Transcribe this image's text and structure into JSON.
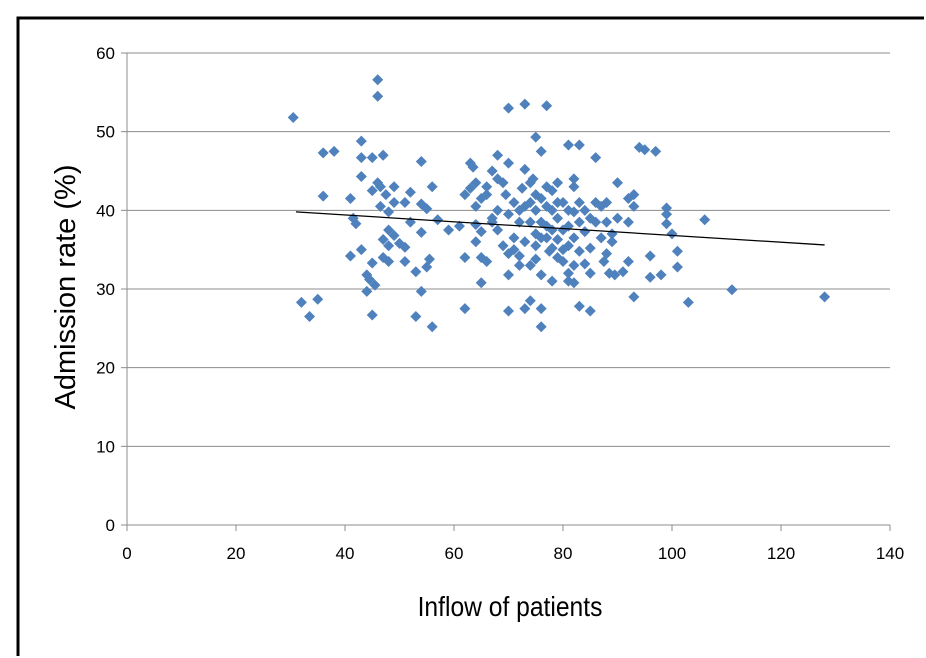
{
  "chart_data": {
    "type": "scatter",
    "title": "",
    "xlabel": "Inflow of patients",
    "ylabel": "Admission rate (%)",
    "xlim": [
      0,
      140
    ],
    "ylim": [
      0,
      60
    ],
    "x_ticks": [
      "0",
      "20",
      "40",
      "60",
      "80",
      "100",
      "120",
      "140"
    ],
    "y_ticks": [
      "0",
      "10",
      "20",
      "30",
      "40",
      "50",
      "60"
    ],
    "grid": "horizontal",
    "legend": "none",
    "marker_color": "#4F81BD",
    "trendline": {
      "type": "linear",
      "color": "#000000",
      "x": [
        31,
        128
      ],
      "y": [
        39.8,
        35.6
      ]
    },
    "series": [
      {
        "points": [
          [
            30.5,
            51.8
          ],
          [
            32,
            28.3
          ],
          [
            33.5,
            26.5
          ],
          [
            35,
            28.7
          ],
          [
            36,
            41.8
          ],
          [
            36,
            47.3
          ],
          [
            38,
            47.5
          ],
          [
            41,
            34.2
          ],
          [
            41,
            41.5
          ],
          [
            41.5,
            39
          ],
          [
            42,
            38.3
          ],
          [
            43,
            48.8
          ],
          [
            43,
            46.7
          ],
          [
            43,
            44.3
          ],
          [
            43,
            35
          ],
          [
            44,
            31.8
          ],
          [
            44,
            29.7
          ],
          [
            44.5,
            31.2
          ],
          [
            45,
            42.5
          ],
          [
            45,
            26.7
          ],
          [
            45,
            33.3
          ],
          [
            45,
            46.7
          ],
          [
            45.5,
            30.5
          ],
          [
            46,
            56.6
          ],
          [
            46,
            54.5
          ],
          [
            46,
            43.5
          ],
          [
            46.5,
            43
          ],
          [
            46.5,
            40.5
          ],
          [
            47,
            47
          ],
          [
            47,
            36.3
          ],
          [
            47,
            34
          ],
          [
            47.5,
            42
          ],
          [
            48,
            39.8
          ],
          [
            48,
            37.5
          ],
          [
            48,
            35.5
          ],
          [
            48,
            33.5
          ],
          [
            49,
            43
          ],
          [
            49,
            41
          ],
          [
            49,
            36.8
          ],
          [
            50,
            35.8
          ],
          [
            51,
            41
          ],
          [
            51,
            35.3
          ],
          [
            51,
            33.5
          ],
          [
            52,
            42.3
          ],
          [
            52,
            38.5
          ],
          [
            53,
            26.5
          ],
          [
            53,
            32.2
          ],
          [
            54,
            46.2
          ],
          [
            54,
            40.8
          ],
          [
            54,
            37.2
          ],
          [
            54,
            29.7
          ],
          [
            55,
            40.2
          ],
          [
            55,
            32.8
          ],
          [
            55.5,
            33.8
          ],
          [
            56,
            25.2
          ],
          [
            56,
            43
          ],
          [
            57,
            38.8
          ],
          [
            59,
            37.5
          ],
          [
            61,
            38
          ],
          [
            62,
            42
          ],
          [
            62,
            34
          ],
          [
            62,
            27.5
          ],
          [
            63,
            46
          ],
          [
            63,
            42.8
          ],
          [
            63.5,
            45.5
          ],
          [
            64,
            40.5
          ],
          [
            64,
            38.2
          ],
          [
            64,
            36
          ],
          [
            64,
            43.5
          ],
          [
            65,
            41.5
          ],
          [
            65,
            37.3
          ],
          [
            65,
            34
          ],
          [
            65,
            30.8
          ],
          [
            66,
            43
          ],
          [
            66,
            42
          ],
          [
            66,
            33.5
          ],
          [
            67,
            45
          ],
          [
            67,
            39
          ],
          [
            67,
            38.5
          ],
          [
            68,
            47
          ],
          [
            68,
            44
          ],
          [
            68,
            40
          ],
          [
            68,
            37.5
          ],
          [
            69,
            43.5
          ],
          [
            69,
            35.5
          ],
          [
            69.5,
            42
          ],
          [
            70,
            53
          ],
          [
            70,
            46
          ],
          [
            70,
            39.5
          ],
          [
            70,
            34.5
          ],
          [
            70,
            31.8
          ],
          [
            70,
            27.2
          ],
          [
            71,
            41
          ],
          [
            71,
            36.5
          ],
          [
            71,
            35
          ],
          [
            72,
            40
          ],
          [
            72,
            38.5
          ],
          [
            72,
            34.2
          ],
          [
            72,
            33
          ],
          [
            72.5,
            42.8
          ],
          [
            73,
            53.5
          ],
          [
            73,
            45.2
          ],
          [
            73,
            40.5
          ],
          [
            73,
            36
          ],
          [
            73,
            27.5
          ],
          [
            74,
            43.5
          ],
          [
            74,
            41
          ],
          [
            74,
            38.5
          ],
          [
            74,
            33
          ],
          [
            74,
            28.5
          ],
          [
            74.5,
            44
          ],
          [
            75,
            49.3
          ],
          [
            75,
            42
          ],
          [
            75,
            40
          ],
          [
            75,
            37
          ],
          [
            75,
            35.5
          ],
          [
            75,
            33.8
          ],
          [
            76,
            47.5
          ],
          [
            76,
            41.5
          ],
          [
            76,
            38.5
          ],
          [
            76,
            36.5
          ],
          [
            76,
            31.8
          ],
          [
            76,
            27.5
          ],
          [
            76,
            25.2
          ],
          [
            77,
            53.3
          ],
          [
            77,
            43
          ],
          [
            77,
            40.5
          ],
          [
            77,
            38
          ],
          [
            77,
            36.5
          ],
          [
            77.5,
            34.8
          ],
          [
            78,
            42.5
          ],
          [
            78,
            40
          ],
          [
            78,
            37.5
          ],
          [
            78,
            35.2
          ],
          [
            78,
            31
          ],
          [
            79,
            43.5
          ],
          [
            79,
            41
          ],
          [
            79,
            39
          ],
          [
            79,
            36.3
          ],
          [
            79,
            34
          ],
          [
            80,
            41
          ],
          [
            80,
            37.5
          ],
          [
            80,
            35
          ],
          [
            80,
            33.5
          ],
          [
            81,
            48.3
          ],
          [
            81,
            40
          ],
          [
            81,
            38
          ],
          [
            81,
            35.5
          ],
          [
            81,
            32
          ],
          [
            81,
            31
          ],
          [
            82,
            44
          ],
          [
            82,
            43
          ],
          [
            82,
            39.8
          ],
          [
            82,
            36.5
          ],
          [
            82,
            33
          ],
          [
            82,
            30.8
          ],
          [
            83,
            48.3
          ],
          [
            83,
            41
          ],
          [
            83,
            38.5
          ],
          [
            83,
            34.8
          ],
          [
            83,
            27.8
          ],
          [
            84,
            40
          ],
          [
            84,
            37.3
          ],
          [
            84,
            33.2
          ],
          [
            85,
            39
          ],
          [
            85,
            35.2
          ],
          [
            85,
            32
          ],
          [
            85,
            27.2
          ],
          [
            86,
            46.7
          ],
          [
            86,
            41
          ],
          [
            86,
            38.5
          ],
          [
            87,
            40.5
          ],
          [
            87,
            36.5
          ],
          [
            87.5,
            33.5
          ],
          [
            88,
            41
          ],
          [
            88,
            38.5
          ],
          [
            88,
            34.5
          ],
          [
            88.5,
            32
          ],
          [
            89,
            37
          ],
          [
            89,
            36
          ],
          [
            89.5,
            31.8
          ],
          [
            90,
            43.5
          ],
          [
            90,
            39
          ],
          [
            91,
            32.2
          ],
          [
            92,
            41.5
          ],
          [
            92,
            38.5
          ],
          [
            92,
            33.5
          ],
          [
            93,
            42
          ],
          [
            93,
            40.5
          ],
          [
            93,
            29
          ],
          [
            94,
            48
          ],
          [
            95,
            47.7
          ],
          [
            96,
            34.2
          ],
          [
            96,
            31.5
          ],
          [
            97,
            47.5
          ],
          [
            98,
            31.8
          ],
          [
            99,
            40.3
          ],
          [
            99,
            39.5
          ],
          [
            99,
            38.3
          ],
          [
            100,
            37
          ],
          [
            101,
            34.8
          ],
          [
            101,
            32.8
          ],
          [
            103,
            28.3
          ],
          [
            106,
            38.8
          ],
          [
            111,
            29.9
          ],
          [
            128,
            29
          ]
        ]
      }
    ]
  }
}
